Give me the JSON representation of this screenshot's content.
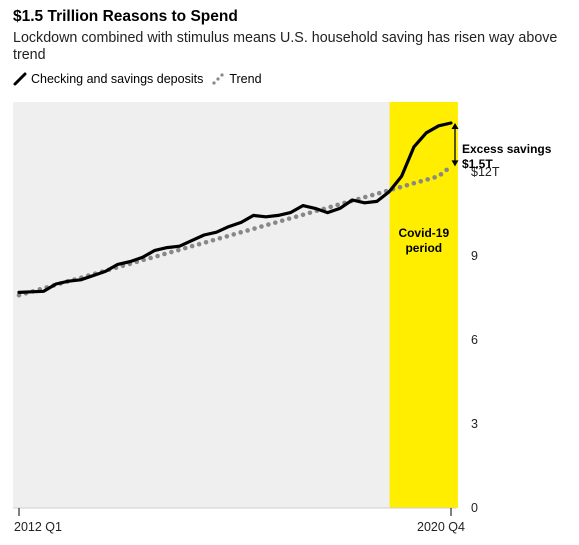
{
  "chart_data": {
    "type": "line",
    "title": "$1.5 Trillion Reasons to Spend",
    "subtitle": "Lockdown combined with stimulus means U.S. household saving has risen way above trend",
    "x_labels": [
      "2012 Q1",
      "2020 Q4"
    ],
    "x": [
      "2012 Q1",
      "2012 Q2",
      "2012 Q3",
      "2012 Q4",
      "2013 Q1",
      "2013 Q2",
      "2013 Q3",
      "2013 Q4",
      "2014 Q1",
      "2014 Q2",
      "2014 Q3",
      "2014 Q4",
      "2015 Q1",
      "2015 Q2",
      "2015 Q3",
      "2015 Q4",
      "2016 Q1",
      "2016 Q2",
      "2016 Q3",
      "2016 Q4",
      "2017 Q1",
      "2017 Q2",
      "2017 Q3",
      "2017 Q4",
      "2018 Q1",
      "2018 Q2",
      "2018 Q3",
      "2018 Q4",
      "2019 Q1",
      "2019 Q2",
      "2019 Q3",
      "2019 Q4",
      "2020 Q1",
      "2020 Q2",
      "2020 Q3",
      "2020 Q4"
    ],
    "series": [
      {
        "name": "Checking and savings deposits",
        "style": "solid",
        "color": "#000000",
        "values": [
          7.7,
          7.72,
          7.74,
          8.0,
          8.1,
          8.15,
          8.3,
          8.45,
          8.7,
          8.8,
          8.95,
          9.2,
          9.3,
          9.35,
          9.55,
          9.75,
          9.85,
          10.05,
          10.2,
          10.45,
          10.4,
          10.45,
          10.55,
          10.8,
          10.7,
          10.55,
          10.7,
          11.0,
          10.9,
          10.95,
          11.3,
          11.85,
          12.9,
          13.4,
          13.65,
          13.75
        ]
      },
      {
        "name": "Trend",
        "style": "dotted",
        "color": "#888888",
        "values": [
          7.6,
          7.72,
          7.85,
          7.97,
          8.1,
          8.22,
          8.35,
          8.47,
          8.6,
          8.72,
          8.85,
          8.97,
          9.1,
          9.22,
          9.35,
          9.47,
          9.6,
          9.72,
          9.85,
          9.97,
          10.1,
          10.22,
          10.35,
          10.47,
          10.6,
          10.72,
          10.85,
          10.97,
          11.1,
          11.22,
          11.35,
          11.47,
          11.6,
          11.72,
          11.85,
          12.2
        ]
      }
    ],
    "y_ticks": [
      0,
      3,
      6,
      9,
      12
    ],
    "y_tick_labels": [
      "0",
      "3",
      "6",
      "9",
      "$12T"
    ],
    "ylim": [
      0,
      14.5
    ],
    "grid": false,
    "legend_position": "top-left",
    "highlight_band": {
      "label_line1": "Covid-19",
      "label_line2": "period",
      "from_index": 31,
      "to_index": 35.4,
      "color": "#FFEE00"
    },
    "annotation": {
      "line1": "Excess savings",
      "line2": "$1.5T",
      "from_value": 12.2,
      "to_value": 13.75
    },
    "plot_background": "#EFEFEF"
  }
}
